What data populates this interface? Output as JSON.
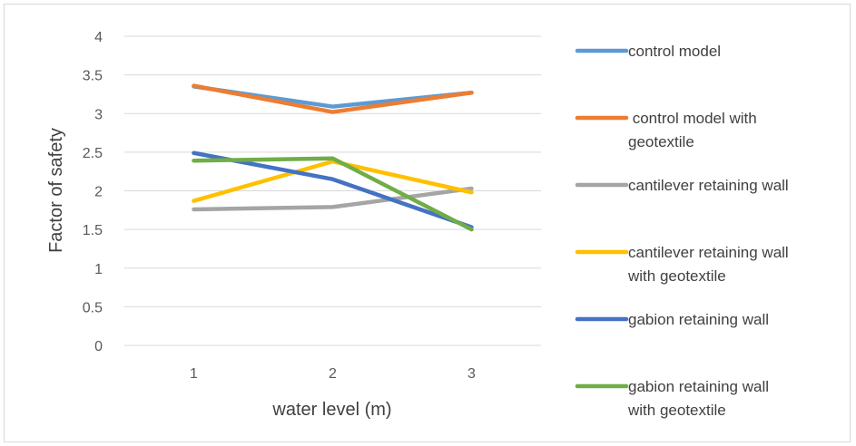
{
  "chart_data": {
    "type": "line",
    "title": "",
    "xlabel": "water level (m)",
    "ylabel": "Factor of safety",
    "categories": [
      "1",
      "2",
      "3"
    ],
    "ylim": [
      0,
      4
    ],
    "yticks": [
      "0",
      "0.5",
      "1",
      "1.5",
      "2",
      "2.5",
      "3",
      "3.5",
      "4"
    ],
    "grid": true,
    "legend_position": "right",
    "series": [
      {
        "name": "control model",
        "legend_lines": [
          "control model"
        ],
        "color": "#5b9bd5",
        "values": [
          3.35,
          3.09,
          3.27
        ]
      },
      {
        "name": " control model with geotextile",
        "legend_lines": [
          " control model with",
          "geotextile"
        ],
        "color": "#ed7d31",
        "values": [
          3.36,
          3.02,
          3.27
        ]
      },
      {
        "name": "cantilever retaining wall",
        "legend_lines": [
          "cantilever retaining wall"
        ],
        "color": "#a5a5a5",
        "values": [
          1.76,
          1.79,
          2.03
        ]
      },
      {
        "name": "cantilever retaining wall with geotextile",
        "legend_lines": [
          "cantilever retaining wall",
          "with geotextile"
        ],
        "color": "#ffc000",
        "values": [
          1.87,
          2.38,
          1.98
        ]
      },
      {
        "name": "gabion retaining wall",
        "legend_lines": [
          "gabion retaining wall"
        ],
        "color": "#4472c4",
        "values": [
          2.49,
          2.15,
          1.53
        ]
      },
      {
        "name": "gabion retaining wall with geotextile",
        "legend_lines": [
          "gabion retaining wall",
          "with geotextile"
        ],
        "color": "#70ad47",
        "values": [
          2.39,
          2.42,
          1.5
        ]
      }
    ]
  }
}
